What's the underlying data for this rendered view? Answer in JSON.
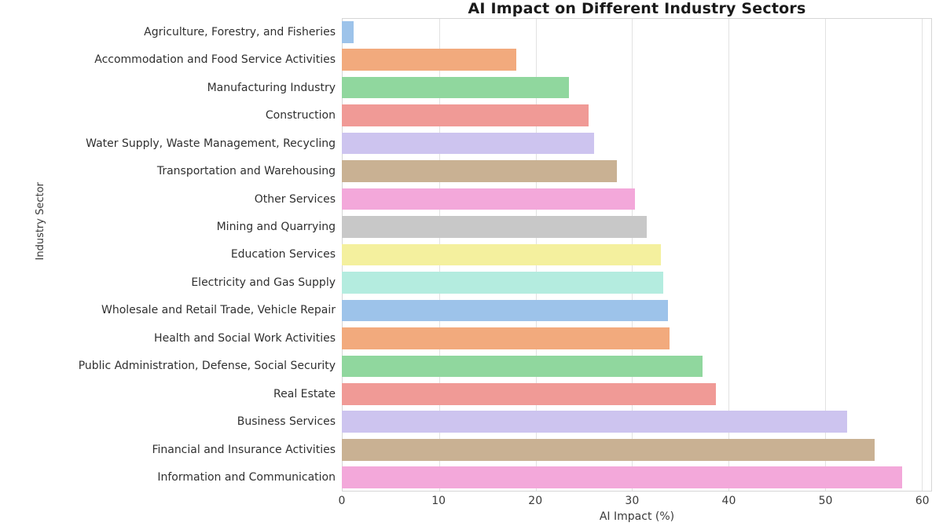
{
  "chart_data": {
    "type": "bar",
    "orientation": "horizontal",
    "title": "AI Impact on Different Industry Sectors",
    "xlabel": "AI Impact (%)",
    "ylabel": "Industry Sector",
    "xlim": [
      0,
      61
    ],
    "xticks": [
      0,
      10,
      20,
      30,
      40,
      50,
      60
    ],
    "grid": true,
    "legend": false,
    "categories": [
      "Agriculture, Forestry, and Fisheries",
      "Accommodation and Food Service Activities",
      "Manufacturing Industry",
      "Construction",
      "Water Supply, Waste Management, Recycling",
      "Transportation and Warehousing",
      "Other Services",
      "Mining and Quarrying",
      "Education Services",
      "Electricity and Gas Supply",
      "Wholesale and Retail Trade, Vehicle Repair",
      "Health and Social Work Activities",
      "Public Administration, Defense, Social Security",
      "Real Estate",
      "Business Services",
      "Financial and Insurance Activities",
      "Information and Communication"
    ],
    "values": [
      1.2,
      18.0,
      23.5,
      25.5,
      26.1,
      28.4,
      30.3,
      31.5,
      33.0,
      33.2,
      33.7,
      33.9,
      37.3,
      38.7,
      52.2,
      55.1,
      57.9
    ],
    "palette": [
      "#9dc3ea",
      "#f2aa7d",
      "#90d79e",
      "#f09a96",
      "#cdc4ef",
      "#c9b193",
      "#f3a8da",
      "#c8c8c8",
      "#f4f09e",
      "#b4ecdf"
    ],
    "bar_colors": [
      "#9dc3ea",
      "#f2aa7d",
      "#90d79e",
      "#f09a96",
      "#cdc4ef",
      "#c9b193",
      "#f3a8da",
      "#c8c8c8",
      "#f4f09e",
      "#b4ecdf",
      "#9dc3ea",
      "#f2aa7d",
      "#90d79e",
      "#f09a96",
      "#cdc4ef",
      "#c9b193",
      "#f3a8da"
    ],
    "colors_note": {
      "grid_color": "#e2e2e2",
      "spine_color": "#d6d6d6",
      "title_color": "#1a1a1a",
      "tick_label_color": "#3a3a3a"
    }
  }
}
